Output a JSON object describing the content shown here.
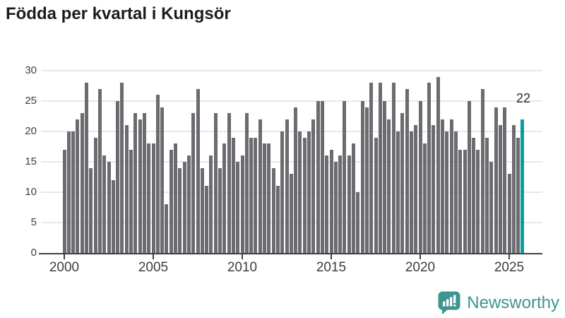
{
  "title": "Födda per kvartal i Kungsör",
  "logo": {
    "text": "Newsworthy"
  },
  "colors": {
    "bar": "#6b6b70",
    "highlight": "#0a9d9d",
    "grid": "#e8e8e8",
    "axis": "#404040",
    "tick_text": "#3d3d3d",
    "title_text": "#1c1c1c",
    "logo_teal": "#3c958f",
    "background": "#ffffff"
  },
  "chart_data": {
    "type": "bar",
    "title": "Födda per kvartal i Kungsör",
    "start_year": 2000,
    "periods_per_year": 4,
    "x_tick_labels": [
      "2000",
      "2005",
      "2010",
      "2015",
      "2020",
      "2025"
    ],
    "y_tick_labels": [
      "0",
      "5",
      "10",
      "15",
      "20",
      "25",
      "30"
    ],
    "ylim": [
      0,
      30
    ],
    "grid": "horizontal",
    "legend": "none",
    "values": [
      17,
      20,
      20,
      22,
      23,
      28,
      14,
      19,
      27,
      16,
      15,
      12,
      25,
      28,
      21,
      17,
      23,
      22,
      23,
      18,
      18,
      26,
      24,
      8,
      17,
      18,
      14,
      15,
      16,
      23,
      27,
      14,
      11,
      16,
      23,
      14,
      18,
      23,
      19,
      15,
      16,
      23,
      19,
      19,
      22,
      18,
      18,
      14,
      11,
      20,
      22,
      13,
      24,
      20,
      19,
      20,
      22,
      25,
      25,
      16,
      17,
      15,
      16,
      25,
      16,
      18,
      10,
      25,
      24,
      28,
      19,
      28,
      25,
      22,
      28,
      20,
      23,
      27,
      20,
      21,
      25,
      18,
      28,
      21,
      29,
      22,
      20,
      22,
      20,
      17,
      17,
      25,
      19,
      17,
      27,
      19,
      15,
      24,
      21,
      24,
      13,
      21,
      19,
      22
    ],
    "highlight_last": true,
    "last_value_label": "22"
  }
}
